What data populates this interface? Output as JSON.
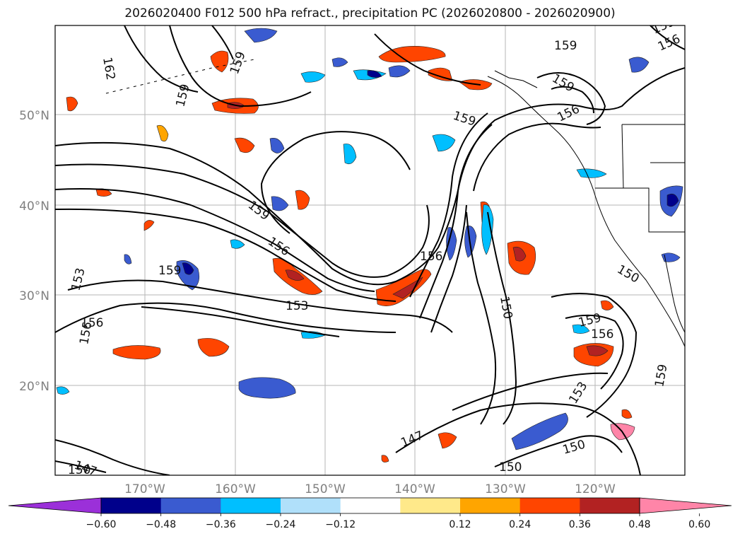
{
  "title": "2026020400 F012 500 hPa refract., precipitation PC (2026020800 - 2026020900)",
  "map": {
    "lat_labels": [
      "50°N",
      "40°N",
      "30°N",
      "20°N"
    ],
    "lon_labels": [
      "170°W",
      "160°W",
      "150°W",
      "140°W",
      "130°W",
      "120°W"
    ],
    "contour_labels": [
      "162",
      "159",
      "159",
      "159",
      "159",
      "159",
      "156",
      "159",
      "156",
      "156",
      "153",
      "153",
      "153",
      "150",
      "150",
      "150",
      "147",
      "147",
      "150",
      "159",
      "159",
      "156",
      "156",
      "159",
      "150",
      "159",
      "156",
      "156"
    ]
  },
  "colorbar": {
    "ticks": [
      "−0.60",
      "−0.48",
      "−0.36",
      "−0.24",
      "−0.12",
      "0.12",
      "0.24",
      "0.36",
      "0.48",
      "0.60"
    ],
    "colors": [
      "#9b30d9",
      "#00008b",
      "#3a5bd0",
      "#00bfff",
      "#b0e0fa",
      "#ffffff",
      "#ffe98a",
      "#ffa500",
      "#ff4500",
      "#b22222",
      "#ff85a8"
    ]
  }
}
